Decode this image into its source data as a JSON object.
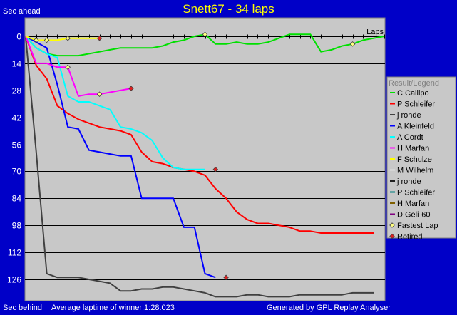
{
  "header": {
    "title": "Snett67 - 34 laps",
    "left_label": "Sec ahead"
  },
  "footer": {
    "left_label": "Sec behind",
    "average": "Average laptime of winner:1:28.023",
    "generator": "Generated by GPL Replay Analyser"
  },
  "colors": {
    "background": "#0000c8",
    "plot_bg": "#c8c8c8",
    "legend_bg": "#c8c8c8",
    "title": "#ffff00",
    "text": "#ffffff",
    "fastest_lap_marker": "#ffff80",
    "retired_marker": "#e02020"
  },
  "chart_data": {
    "type": "line",
    "title": "Snett67 - 34 laps",
    "xlabel": "Laps",
    "ylabel": "Sec ahead",
    "xlim": [
      0,
      34
    ],
    "ylim": [
      0,
      135
    ],
    "y_inverted": true,
    "y_ticks": [
      0,
      14,
      28,
      42,
      56,
      70,
      84,
      98,
      112,
      126
    ],
    "grid": "horizontal",
    "legend_title": "Result/Legend",
    "legend_position": "right",
    "legend": [
      {
        "name": "C Callipo",
        "color": "#00e000",
        "kind": "line"
      },
      {
        "name": "P Schleifer",
        "color": "#ff0000",
        "kind": "line"
      },
      {
        "name": "j rohde",
        "color": "#404040",
        "kind": "line"
      },
      {
        "name": "A Kleinfeld",
        "color": "#0000ff",
        "kind": "line"
      },
      {
        "name": "A Cordt",
        "color": "#00ffff",
        "kind": "line"
      },
      {
        "name": "H Marfan",
        "color": "#ff00ff",
        "kind": "line"
      },
      {
        "name": "F Schulze",
        "color": "#ffff00",
        "kind": "line"
      },
      {
        "name": "M Wilhelm",
        "color": "#e0e0e0",
        "kind": "line"
      },
      {
        "name": "j rohde",
        "color": "#202020",
        "kind": "line"
      },
      {
        "name": "P Schleifer",
        "color": "#008080",
        "kind": "line"
      },
      {
        "name": "H Marfan",
        "color": "#806000",
        "kind": "line"
      },
      {
        "name": "D Geli-60",
        "color": "#800080",
        "kind": "line"
      },
      {
        "name": "Fastest Lap",
        "color": "#ffff80",
        "kind": "diamond"
      },
      {
        "name": "Retired",
        "color": "#e02020",
        "kind": "diamond"
      }
    ],
    "series": [
      {
        "name": "C Callipo",
        "color": "#00e000",
        "x": [
          0,
          1,
          2,
          3,
          4,
          5,
          6,
          7,
          8,
          9,
          10,
          11,
          12,
          13,
          14,
          15,
          16,
          17,
          18,
          19,
          20,
          21,
          22,
          23,
          24,
          25,
          26,
          27,
          28,
          29,
          30,
          31,
          32,
          33,
          34
        ],
        "y": [
          0,
          6,
          9,
          10,
          10,
          10,
          9,
          8,
          7,
          6,
          6,
          6,
          6,
          5,
          3,
          2,
          0,
          -1,
          4,
          4,
          3,
          4,
          4,
          3,
          1,
          -1,
          -1,
          -1,
          8,
          7,
          5,
          4,
          2,
          1,
          0
        ]
      },
      {
        "name": "P Schleifer",
        "color": "#ff0000",
        "x": [
          0,
          1,
          2,
          3,
          4,
          5,
          6,
          7,
          8,
          9,
          10,
          11,
          12,
          13,
          14,
          15,
          16,
          17,
          18,
          19,
          20,
          21,
          22,
          23,
          24,
          25,
          26,
          27,
          28,
          29,
          30,
          31,
          32,
          33
        ],
        "y": [
          0,
          15,
          22,
          36,
          40,
          43,
          45,
          47,
          48,
          49,
          51,
          60,
          65,
          66,
          68,
          69,
          70,
          72,
          79,
          84,
          91,
          95,
          97,
          97,
          98,
          99,
          101,
          101,
          102,
          102,
          102,
          102,
          102,
          102
        ]
      },
      {
        "name": "j rohde",
        "color": "#404040",
        "x": [
          0,
          1,
          2,
          3,
          4,
          5,
          6,
          7,
          8,
          9,
          10,
          11,
          12,
          13,
          14,
          15,
          16,
          17,
          18,
          19,
          20,
          21,
          22,
          23,
          24,
          25,
          26,
          27,
          28,
          29,
          30,
          31,
          32,
          33
        ],
        "y": [
          0,
          60,
          123,
          125,
          125,
          125,
          126,
          127,
          128,
          132,
          132,
          131,
          131,
          130,
          130,
          131,
          132,
          133,
          135,
          135,
          135,
          134,
          134,
          135,
          135,
          135,
          134,
          134,
          134,
          134,
          134,
          133,
          133,
          133
        ]
      },
      {
        "name": "A Kleinfeld",
        "color": "#0000ff",
        "x": [
          0,
          1,
          2,
          3,
          4,
          5,
          6,
          7,
          8,
          9,
          10,
          11,
          12,
          13,
          14,
          15,
          16,
          17,
          18
        ],
        "y": [
          0,
          3,
          6,
          25,
          47,
          48,
          59,
          60,
          61,
          62,
          62,
          84,
          84,
          84,
          84,
          99,
          99,
          123,
          125
        ]
      },
      {
        "name": "A Cordt",
        "color": "#00ffff",
        "x": [
          0,
          1,
          2,
          3,
          4,
          5,
          6,
          7,
          8,
          9,
          10,
          11,
          12,
          13,
          14,
          15,
          16,
          17
        ],
        "y": [
          0,
          6,
          9,
          11,
          31,
          34,
          34,
          36,
          38,
          47,
          48,
          50,
          54,
          63,
          68,
          69,
          69,
          69
        ]
      },
      {
        "name": "H Marfan",
        "color": "#ff00ff",
        "x": [
          0,
          1,
          2,
          3,
          4,
          5,
          6,
          7,
          8,
          9,
          10
        ],
        "y": [
          0,
          14,
          14,
          16,
          16,
          31,
          30,
          30,
          29,
          28,
          27
        ]
      },
      {
        "name": "F Schulze",
        "color": "#ffff00",
        "x": [
          0,
          1,
          2,
          3,
          4,
          5,
          6,
          7
        ],
        "y": [
          0,
          2,
          2,
          2,
          1,
          1,
          1,
          1
        ]
      }
    ],
    "fastest_laps": [
      {
        "x": 1,
        "y": 2
      },
      {
        "x": 2,
        "y": 2
      },
      {
        "x": 4,
        "y": 1
      },
      {
        "x": 4,
        "y": 16
      },
      {
        "x": 7,
        "y": 30
      },
      {
        "x": 17,
        "y": -1
      },
      {
        "x": 31,
        "y": 4
      }
    ],
    "retired": [
      {
        "x": 7,
        "y": 1
      },
      {
        "x": 10,
        "y": 27
      },
      {
        "x": 18,
        "y": 69
      },
      {
        "x": 19,
        "y": 125
      }
    ]
  }
}
